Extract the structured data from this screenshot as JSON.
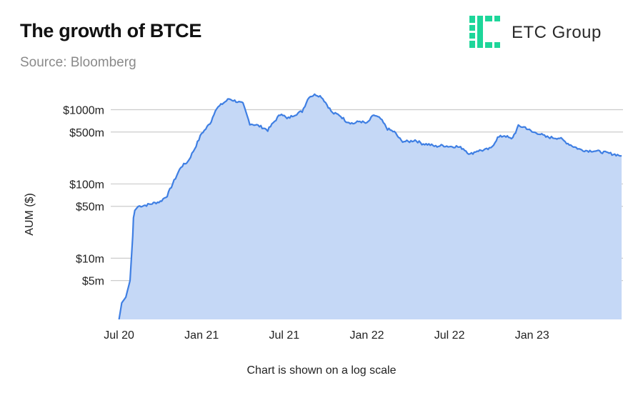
{
  "header": {
    "title": "The growth of BTCE",
    "subtitle": "Source: Bloomberg"
  },
  "logo": {
    "text": "ETC Group",
    "color": "#1ed69a"
  },
  "footer": {
    "note": "Chart is shown on a log scale"
  },
  "colors": {
    "line": "#3f7fe3",
    "area": "#c5d8f6",
    "grid": "#cccccc"
  },
  "chart_data": {
    "type": "area",
    "title": "The growth of BTCE",
    "ylabel": "AUM ($)",
    "yscale": "log",
    "ylim": [
      1.5,
      2100
    ],
    "grid": true,
    "xticks": [
      {
        "label": "Jul 20",
        "t": 0
      },
      {
        "label": "Jan 21",
        "t": 6
      },
      {
        "label": "Jul 21",
        "t": 12
      },
      {
        "label": "Jan 22",
        "t": 18
      },
      {
        "label": "Jul 22",
        "t": 24
      },
      {
        "label": "Jan 23",
        "t": 30
      }
    ],
    "yticks": [
      {
        "label": "$1000m",
        "v": 1000
      },
      {
        "label": "$500m",
        "v": 500
      },
      {
        "label": "$100m",
        "v": 100
      },
      {
        "label": "$50m",
        "v": 50
      },
      {
        "label": "$10m",
        "v": 10
      },
      {
        "label": "$5m",
        "v": 5
      }
    ],
    "series": [
      {
        "x": [
          0,
          0.2,
          0.5,
          0.8,
          1.0,
          1.05,
          1.15,
          1.4,
          2.0,
          2.5,
          3.0,
          3.5,
          4.0,
          4.5,
          5.0,
          5.5,
          6.0,
          6.3,
          6.7,
          7.0,
          7.5,
          8.0,
          8.5,
          9.0,
          9.5,
          10.0,
          10.4,
          10.8,
          11.3,
          11.8,
          12.2,
          12.7,
          13.3,
          13.8,
          14.3,
          14.7,
          15.0,
          15.5,
          16.0,
          16.5,
          17.0,
          17.5,
          18.0,
          18.5,
          19.0,
          19.5,
          20.0,
          20.5,
          21.0,
          21.5,
          22.0,
          22.5,
          23.0,
          23.5,
          24.0,
          24.5,
          25.0,
          25.5,
          26.0,
          26.5,
          27.0,
          27.5,
          28.0,
          28.5,
          28.8,
          29.0,
          29.5,
          30.0,
          30.5,
          31.0,
          31.5,
          32.0,
          32.5,
          33.0,
          33.5,
          34.0,
          34.5,
          35.0,
          35.5,
          36.0,
          36.5
        ],
        "y": [
          1.5,
          2.5,
          3.0,
          5.0,
          20,
          35,
          44,
          50,
          52,
          55,
          58,
          70,
          110,
          170,
          200,
          300,
          480,
          550,
          700,
          1000,
          1200,
          1400,
          1300,
          1200,
          650,
          620,
          580,
          530,
          700,
          900,
          750,
          850,
          950,
          1500,
          1600,
          1500,
          1250,
          900,
          850,
          700,
          650,
          700,
          650,
          850,
          750,
          550,
          500,
          380,
          370,
          390,
          350,
          340,
          320,
          330,
          320,
          320,
          300,
          250,
          280,
          285,
          300,
          420,
          450,
          400,
          500,
          600,
          580,
          500,
          480,
          430,
          420,
          415,
          360,
          320,
          290,
          280,
          280,
          270,
          260,
          250,
          240
        ]
      }
    ]
  }
}
